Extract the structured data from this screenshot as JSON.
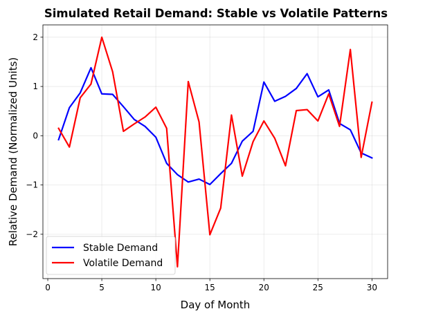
{
  "chart_data": {
    "type": "line",
    "title": "Simulated Retail Demand: Stable vs Volatile Patterns",
    "xlabel": "Day of Month",
    "ylabel": "Relative Demand (Normalized Units)",
    "xlim": [
      -0.45,
      31.45
    ],
    "ylim": [
      -2.9,
      2.25
    ],
    "xticks": [
      0,
      5,
      10,
      15,
      20,
      25,
      30
    ],
    "yticks": [
      -2,
      -1,
      0,
      1,
      2
    ],
    "grid": true,
    "legend_position": "lower-left",
    "x": [
      1,
      2,
      3,
      4,
      5,
      6,
      7,
      8,
      9,
      10,
      11,
      12,
      13,
      14,
      15,
      16,
      17,
      18,
      19,
      20,
      21,
      22,
      23,
      24,
      25,
      26,
      27,
      28,
      29,
      30
    ],
    "series": [
      {
        "name": "Stable Demand",
        "color": "#0000ff",
        "values": [
          -0.08,
          0.57,
          0.87,
          1.38,
          0.85,
          0.84,
          0.59,
          0.33,
          0.19,
          -0.03,
          -0.56,
          -0.79,
          -0.94,
          -0.88,
          -0.99,
          -0.77,
          -0.56,
          -0.11,
          0.09,
          1.09,
          0.7,
          0.8,
          0.96,
          1.26,
          0.79,
          0.93,
          0.25,
          0.12,
          -0.35,
          -0.45
        ]
      },
      {
        "name": "Volatile Demand",
        "color": "#ff0000",
        "values": [
          0.15,
          -0.23,
          0.77,
          1.05,
          2.0,
          1.3,
          0.09,
          0.24,
          0.38,
          0.58,
          0.15,
          -2.66,
          1.1,
          0.28,
          -2.01,
          -1.47,
          0.42,
          -0.82,
          -0.12,
          0.3,
          -0.05,
          -0.61,
          0.51,
          0.53,
          0.3,
          0.85,
          0.19,
          1.75,
          -0.44,
          0.68
        ]
      }
    ]
  }
}
